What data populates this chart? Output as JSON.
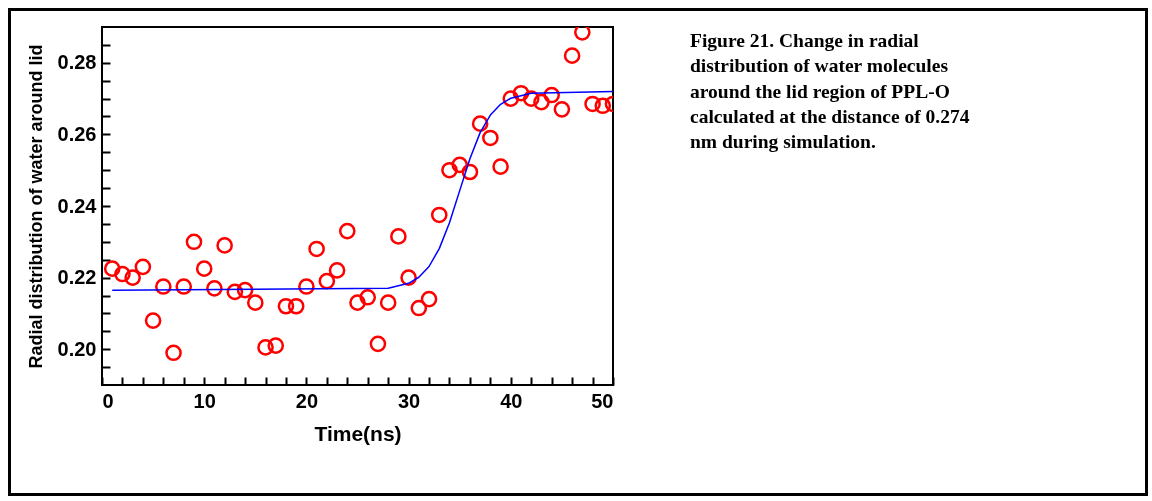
{
  "chart_data": {
    "type": "scatter",
    "xlabel": "Time(ns)",
    "ylabel": "Radial distribution of water around lid",
    "annotations": [
      "Figure 21. Change in radial distribution of water molecules around the lid region of PPL-O calculated at the distance of 0.274 nm during simulation."
    ],
    "xlim": [
      0,
      50
    ],
    "ylim": [
      0.19,
      0.29
    ],
    "xticks": [
      0,
      {
        "value": 2,
        "label": null
      },
      {
        "value": 4,
        "label": null
      },
      {
        "value": 6,
        "label": null
      },
      {
        "value": 8,
        "label": null
      },
      10,
      {
        "value": 12,
        "label": null
      },
      {
        "value": 14,
        "label": null
      },
      {
        "value": 16,
        "label": null
      },
      {
        "value": 18,
        "label": null
      },
      20,
      {
        "value": 22,
        "label": null
      },
      {
        "value": 24,
        "label": null
      },
      {
        "value": 26,
        "label": null
      },
      {
        "value": 28,
        "label": null
      },
      30,
      {
        "value": 32,
        "label": null
      },
      {
        "value": 34,
        "label": null
      },
      {
        "value": 36,
        "label": null
      },
      {
        "value": 38,
        "label": null
      },
      40,
      {
        "value": 42,
        "label": null
      },
      {
        "value": 44,
        "label": null
      },
      {
        "value": 46,
        "label": null
      },
      {
        "value": 48,
        "label": null
      },
      50
    ],
    "yticks": [
      {
        "value": 0.195,
        "label": null
      },
      {
        "value": 0.2,
        "label": "0.20"
      },
      {
        "value": 0.205,
        "label": null
      },
      {
        "value": 0.21,
        "label": null
      },
      {
        "value": 0.215,
        "label": null
      },
      {
        "value": 0.22,
        "label": "0.22"
      },
      {
        "value": 0.225,
        "label": null
      },
      {
        "value": 0.23,
        "label": null
      },
      {
        "value": 0.235,
        "label": null
      },
      {
        "value": 0.24,
        "label": "0.24"
      },
      {
        "value": 0.245,
        "label": null
      },
      {
        "value": 0.25,
        "label": null
      },
      {
        "value": 0.255,
        "label": null
      },
      {
        "value": 0.26,
        "label": "0.26"
      },
      {
        "value": 0.265,
        "label": null
      },
      {
        "value": 0.27,
        "label": null
      },
      {
        "value": 0.275,
        "label": null
      },
      {
        "value": 0.28,
        "label": "0.28"
      },
      {
        "value": 0.285,
        "label": null
      }
    ],
    "grid": false,
    "legend": false,
    "marker": "circle",
    "series": [
      {
        "type": "scatter",
        "color": "#ff0000",
        "x": [
          1,
          2,
          3,
          4,
          5,
          6,
          7,
          8,
          9,
          10,
          11,
          12,
          13,
          14,
          15,
          16,
          17,
          18,
          19,
          20,
          21,
          22,
          23,
          24,
          25,
          26,
          27,
          28,
          29,
          30,
          31,
          32,
          33,
          34,
          35,
          36,
          37,
          38,
          39,
          40,
          41,
          42,
          43,
          44,
          45,
          46,
          47,
          48,
          49,
          50
        ],
        "values": [
          0.2225,
          0.221,
          0.22,
          0.223,
          0.208,
          0.2175,
          0.199,
          0.2175,
          0.23,
          0.2225,
          0.217,
          0.229,
          0.216,
          0.2165,
          0.213,
          0.2005,
          0.201,
          0.212,
          0.212,
          0.2175,
          0.228,
          0.219,
          0.222,
          0.233,
          0.213,
          0.2145,
          0.2015,
          0.213,
          0.2315,
          0.22,
          0.2115,
          0.214,
          0.2375,
          0.25,
          0.2515,
          0.2495,
          0.263,
          0.259,
          0.251,
          0.27,
          0.2715,
          0.27,
          0.269,
          0.271,
          0.267,
          0.282,
          0.2885,
          0.2685,
          0.268,
          0.2685
        ]
      },
      {
        "type": "line",
        "color": "#0000ff",
        "marker": "none",
        "line_style": "solid",
        "x": [
          1,
          28,
          30,
          31,
          32,
          33,
          34,
          35,
          36,
          37,
          38,
          39,
          40,
          42,
          50
        ],
        "values": [
          0.2165,
          0.217,
          0.2184,
          0.2201,
          0.2231,
          0.2281,
          0.2353,
          0.2443,
          0.2532,
          0.2605,
          0.2654,
          0.2684,
          0.2701,
          0.2715,
          0.272
        ]
      }
    ]
  }
}
